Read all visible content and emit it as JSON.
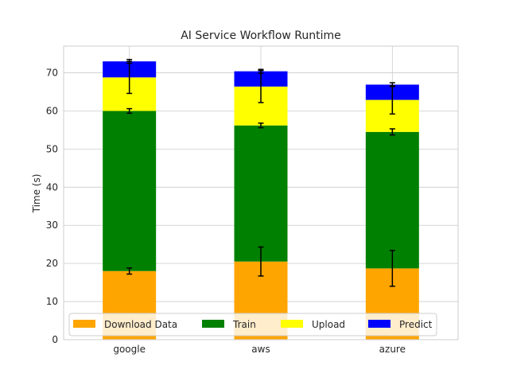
{
  "chart_data": {
    "type": "bar",
    "stacked": true,
    "title": "AI Service Workflow Runtime",
    "xlabel": "",
    "ylabel": "Time (s)",
    "categories": [
      "google",
      "aws",
      "azure"
    ],
    "ylim": [
      0,
      77
    ],
    "yticks": [
      0,
      10,
      20,
      30,
      40,
      50,
      60,
      70
    ],
    "grid": true,
    "legend_position": "bottom",
    "series": [
      {
        "name": "Download Data",
        "color": "#ffa500",
        "values": [
          18.0,
          20.5,
          18.7
        ],
        "errors": [
          0.8,
          3.8,
          4.7
        ]
      },
      {
        "name": "Train",
        "color": "#008000",
        "values": [
          42.0,
          35.7,
          35.8
        ],
        "errors": [
          0.6,
          0.6,
          0.8
        ]
      },
      {
        "name": "Upload",
        "color": "#ffff00",
        "values": [
          8.8,
          10.2,
          8.4
        ],
        "errors": [
          4.2,
          4.2,
          3.7
        ]
      },
      {
        "name": "Predict",
        "color": "#0000ff",
        "values": [
          4.2,
          4.0,
          4.0
        ],
        "errors": [
          0.5,
          0.5,
          0.5
        ]
      }
    ]
  }
}
